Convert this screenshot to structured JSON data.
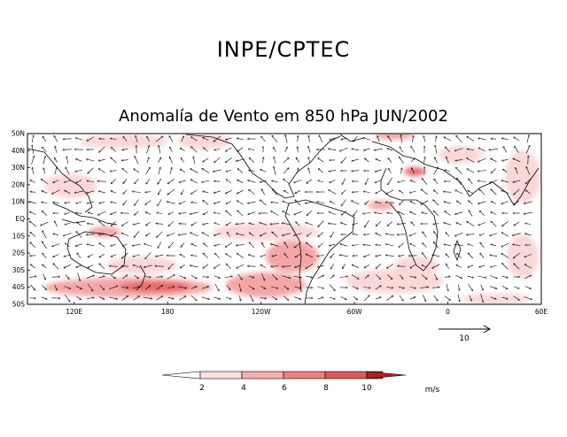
{
  "header": {
    "title": "INPE/CPTEC",
    "subtitle": "Anomalía de Vento em 850 hPa JUN/2002"
  },
  "map": {
    "lat_labels": [
      "50N",
      "40N",
      "30N",
      "20N",
      "10N",
      "EQ",
      "10S",
      "20S",
      "30S",
      "40S",
      "50S"
    ],
    "lon_labels": [
      "120E",
      "180",
      "120W",
      "60W",
      "0",
      "60E"
    ],
    "lon_range": [
      90,
      420
    ],
    "lat_range": [
      -50,
      50
    ]
  },
  "reference_vector": {
    "label": "10"
  },
  "colorbar": {
    "tick_labels": [
      "2",
      "4",
      "6",
      "8",
      "10"
    ],
    "unit": "m/s",
    "colors": [
      "#ffffff",
      "#fde0e0",
      "#f7aeae",
      "#ef8080",
      "#e05858",
      "#c83838",
      "#b02020"
    ]
  },
  "colors": {
    "land_outline": "#000000",
    "shade_light": "#fbd7d7",
    "shade_mid": "#f4a6a6",
    "shade_dark": "#e36a6a"
  }
}
